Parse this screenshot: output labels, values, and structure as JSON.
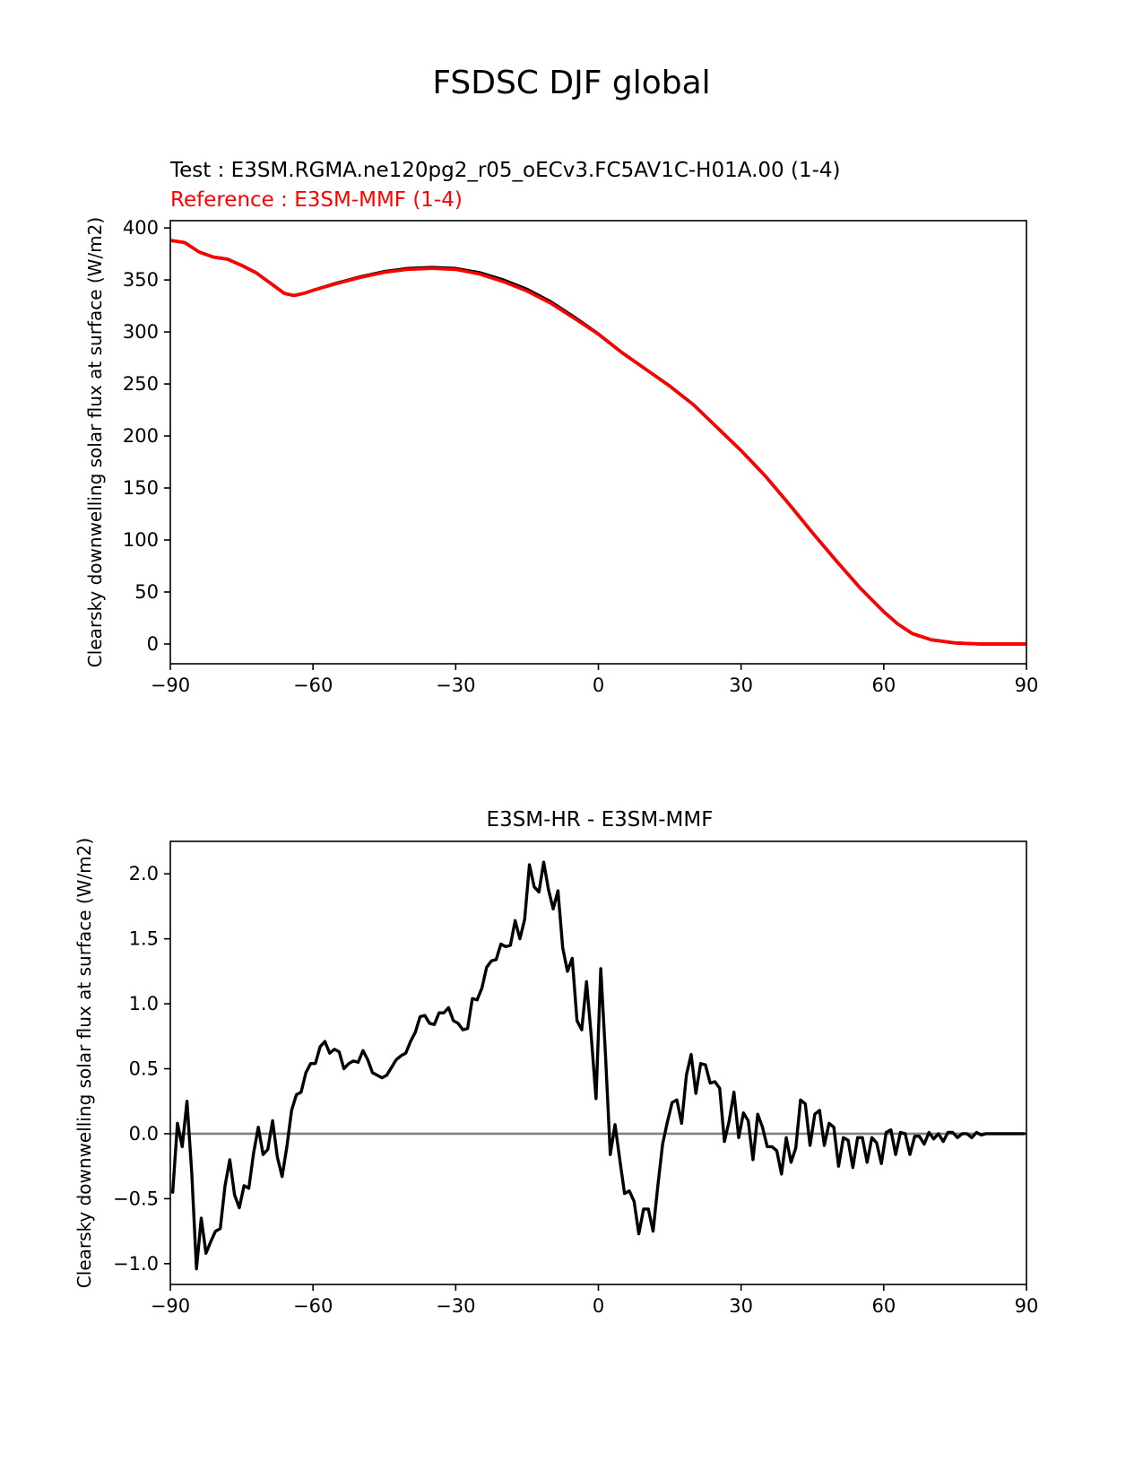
{
  "figure": {
    "title": "FSDSC DJF global"
  },
  "colors": {
    "test": "#000000",
    "reference": "#ff0000",
    "zero_line": "#808080",
    "axes": "#000000"
  },
  "chart_data": [
    {
      "type": "line",
      "test_label": "Test : E3SM.RGMA.ne120pg2_r05_oECv3.FC5AV1C-H01A.00 (1-4)",
      "reference_label": "Reference : E3SM-MMF (1-4)",
      "xlabel": "",
      "ylabel": "Clearsky downwelling solar flux at surface (W/m2)",
      "xlim": [
        -90,
        90
      ],
      "ylim": [
        -19,
        407
      ],
      "xticks": [
        -90,
        -60,
        -30,
        0,
        30,
        60,
        90
      ],
      "xtick_labels": [
        "−90",
        "−60",
        "−30",
        "0",
        "30",
        "60",
        "90"
      ],
      "yticks": [
        0,
        50,
        100,
        150,
        200,
        250,
        300,
        350,
        400
      ],
      "ytick_labels": [
        "0",
        "50",
        "100",
        "150",
        "200",
        "250",
        "300",
        "350",
        "400"
      ],
      "series": [
        {
          "name": "Test",
          "x": [
            -90,
            -87,
            -84,
            -81,
            -78,
            -75,
            -72,
            -69,
            -66,
            -64,
            -62,
            -60,
            -55,
            -50,
            -45,
            -40,
            -35,
            -30,
            -25,
            -20,
            -15,
            -10,
            -5,
            0,
            5,
            10,
            15,
            20,
            25,
            30,
            35,
            40,
            45,
            50,
            55,
            60,
            63,
            66,
            70,
            75,
            80,
            85,
            90
          ],
          "values": [
            388,
            386,
            377,
            372,
            370,
            364,
            357,
            347,
            337,
            335,
            337,
            340,
            347,
            353,
            358,
            361,
            362,
            361,
            357,
            350,
            341,
            329,
            314,
            298,
            280,
            264,
            248,
            230,
            208,
            186,
            162,
            135,
            107,
            80,
            54,
            31,
            19,
            10,
            4,
            1,
            0,
            0,
            0
          ]
        },
        {
          "name": "Reference",
          "x": [
            -90,
            -87,
            -84,
            -81,
            -78,
            -75,
            -72,
            -69,
            -66,
            -64,
            -62,
            -60,
            -55,
            -50,
            -45,
            -40,
            -35,
            -30,
            -25,
            -20,
            -15,
            -10,
            -5,
            0,
            5,
            10,
            15,
            20,
            25,
            30,
            35,
            40,
            45,
            50,
            55,
            60,
            63,
            66,
            70,
            75,
            80,
            85,
            90
          ],
          "values": [
            388,
            386,
            377,
            372,
            370,
            364,
            357,
            347,
            337,
            335,
            337,
            340,
            346.5,
            352.5,
            357.3,
            360.2,
            361.1,
            360.1,
            355.7,
            348.4,
            339.3,
            327.6,
            312.9,
            297.8,
            280,
            264,
            248,
            230,
            208,
            186,
            162,
            135,
            107,
            80,
            54,
            31,
            19,
            10,
            4,
            1,
            0,
            0,
            0
          ]
        }
      ]
    },
    {
      "type": "line",
      "title": "E3SM-HR - E3SM-MMF",
      "xlabel": "",
      "ylabel": "Clearsky downwelling solar flux at surface (W/m2)",
      "xlim": [
        -90,
        90
      ],
      "ylim": [
        -1.16,
        2.25
      ],
      "xticks": [
        -90,
        -60,
        -30,
        0,
        30,
        60,
        90
      ],
      "xtick_labels": [
        "−90",
        "−60",
        "−30",
        "0",
        "30",
        "60",
        "90"
      ],
      "yticks": [
        -1.0,
        -0.5,
        0.0,
        0.5,
        1.0,
        1.5,
        2.0
      ],
      "ytick_labels": [
        "−1.0",
        "−0.5",
        "0.0",
        "0.5",
        "1.0",
        "1.5",
        "2.0"
      ],
      "series": [
        {
          "name": "Difference",
          "x": [
            -89.5,
            -88.5,
            -87.5,
            -86.5,
            -85.5,
            -84.5,
            -83.5,
            -82.5,
            -81.5,
            -80.5,
            -79.5,
            -78.5,
            -77.5,
            -76.5,
            -75.5,
            -74.5,
            -73.5,
            -72.5,
            -71.5,
            -70.5,
            -69.5,
            -68.5,
            -67.5,
            -66.5,
            -65.5,
            -64.5,
            -63.5,
            -62.5,
            -61.5,
            -60.5,
            -59.5,
            -58.5,
            -57.5,
            -56.5,
            -55.5,
            -54.5,
            -53.5,
            -52.5,
            -51.5,
            -50.5,
            -49.5,
            -48.5,
            -47.5,
            -46.5,
            -45.5,
            -44.5,
            -43.5,
            -42.5,
            -41.5,
            -40.5,
            -39.5,
            -38.5,
            -37.5,
            -36.5,
            -35.5,
            -34.5,
            -33.5,
            -32.5,
            -31.5,
            -30.5,
            -29.5,
            -28.5,
            -27.5,
            -26.5,
            -25.5,
            -24.5,
            -23.5,
            -22.5,
            -21.5,
            -20.5,
            -19.5,
            -18.5,
            -17.5,
            -16.5,
            -15.5,
            -14.5,
            -13.5,
            -12.5,
            -11.5,
            -10.5,
            -9.5,
            -8.5,
            -7.5,
            -6.5,
            -5.5,
            -4.5,
            -3.5,
            -2.5,
            -1.5,
            -0.5,
            0.5,
            1.5,
            2.5,
            3.5,
            4.5,
            5.5,
            6.5,
            7.5,
            8.5,
            9.5,
            10.5,
            11.5,
            12.5,
            13.5,
            14.5,
            15.5,
            16.5,
            17.5,
            18.5,
            19.5,
            20.5,
            21.5,
            22.5,
            23.5,
            24.5,
            25.5,
            26.5,
            27.5,
            28.5,
            29.5,
            30.5,
            31.5,
            32.5,
            33.5,
            34.5,
            35.5,
            36.5,
            37.5,
            38.5,
            39.5,
            40.5,
            41.5,
            42.5,
            43.5,
            44.5,
            45.5,
            46.5,
            47.5,
            48.5,
            49.5,
            50.5,
            51.5,
            52.5,
            53.5,
            54.5,
            55.5,
            56.5,
            57.5,
            58.5,
            59.5,
            60.5,
            61.5,
            62.5,
            63.5,
            64.5,
            65.5,
            66.5,
            67.5,
            68.5,
            69.5,
            70.5,
            71.5,
            72.5,
            73.5,
            74.5,
            75.5,
            76.5,
            77.5,
            78.5,
            79.5,
            80.5,
            81.5,
            82.5,
            83.5,
            84.5,
            85.5,
            86.5,
            87.5,
            88.5,
            89.5
          ],
          "values": [
            -0.45,
            0.08,
            -0.1,
            0.25,
            -0.3,
            -1.04,
            -0.65,
            -0.92,
            -0.83,
            -0.75,
            -0.73,
            -0.4,
            -0.2,
            -0.47,
            -0.57,
            -0.4,
            -0.42,
            -0.15,
            0.05,
            -0.16,
            -0.12,
            0.1,
            -0.18,
            -0.33,
            -0.1,
            0.18,
            0.3,
            0.32,
            0.47,
            0.54,
            0.54,
            0.67,
            0.71,
            0.62,
            0.65,
            0.63,
            0.5,
            0.54,
            0.56,
            0.55,
            0.64,
            0.57,
            0.47,
            0.45,
            0.43,
            0.45,
            0.51,
            0.57,
            0.6,
            0.62,
            0.71,
            0.78,
            0.9,
            0.91,
            0.85,
            0.84,
            0.93,
            0.93,
            0.97,
            0.87,
            0.85,
            0.8,
            0.81,
            1.04,
            1.03,
            1.12,
            1.28,
            1.33,
            1.34,
            1.46,
            1.44,
            1.45,
            1.64,
            1.5,
            1.65,
            2.07,
            1.9,
            1.86,
            2.09,
            1.88,
            1.73,
            1.87,
            1.43,
            1.25,
            1.35,
            0.87,
            0.8,
            1.17,
            0.75,
            0.27,
            1.27,
            0.6,
            -0.16,
            0.07,
            -0.2,
            -0.46,
            -0.44,
            -0.52,
            -0.77,
            -0.58,
            -0.58,
            -0.75,
            -0.4,
            -0.08,
            0.09,
            0.24,
            0.26,
            0.08,
            0.45,
            0.61,
            0.31,
            0.54,
            0.53,
            0.39,
            0.4,
            0.35,
            -0.06,
            0.1,
            0.32,
            -0.03,
            0.16,
            0.1,
            -0.2,
            0.15,
            0.05,
            -0.1,
            -0.1,
            -0.13,
            -0.31,
            -0.03,
            -0.22,
            -0.11,
            0.26,
            0.23,
            -0.09,
            0.15,
            0.18,
            -0.09,
            0.08,
            0.05,
            -0.25,
            -0.03,
            -0.05,
            -0.26,
            -0.03,
            -0.03,
            -0.22,
            -0.03,
            -0.07,
            -0.23,
            0.01,
            0.03,
            -0.16,
            0.01,
            0.0,
            -0.16,
            -0.02,
            -0.02,
            -0.08,
            0.01,
            -0.04,
            0.0,
            -0.06,
            0.01,
            0.01,
            -0.03,
            0.0,
            0.0,
            -0.03,
            0.01,
            -0.01,
            0.0,
            0.0,
            0.0,
            0.0,
            0.0,
            0.0,
            0.0,
            0.0,
            0.0
          ]
        }
      ],
      "zero_line": 0.0
    }
  ]
}
